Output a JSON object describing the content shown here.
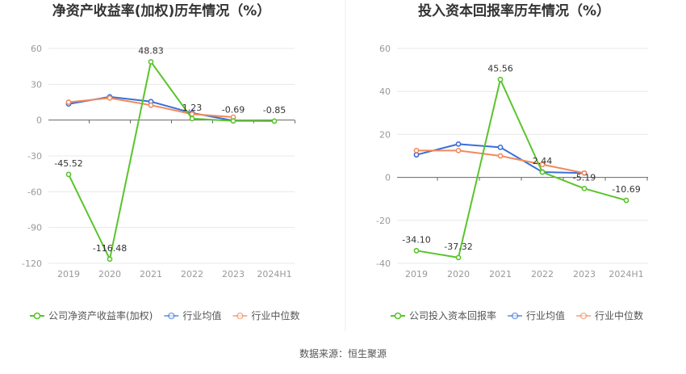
{
  "source_note": "数据来源：恒生聚源",
  "chart_data": [
    {
      "type": "line",
      "title": "净资产收益率(加权)历年情况（%）",
      "categories": [
        "2019",
        "2020",
        "2021",
        "2022",
        "2023",
        "2024H1"
      ],
      "yticks": [
        60,
        30,
        0,
        -30,
        -60,
        -90,
        -120
      ],
      "ylim": [
        -120,
        60
      ],
      "grid": true,
      "legend_position": "bottom-left",
      "series": [
        {
          "name": "公司净资产收益率(加权)",
          "color": "#5ac42b",
          "values": [
            -45.52,
            -116.48,
            48.83,
            1.23,
            -0.69,
            -0.85
          ],
          "labels": [
            "-45.52",
            "-116.48",
            "48.83",
            "1.23",
            "-0.69",
            "-0.85"
          ]
        },
        {
          "name": "行业均值",
          "color": "#3a6fd8",
          "values": [
            13.5,
            19.5,
            15.5,
            6.0,
            -0.5,
            null
          ]
        },
        {
          "name": "行业中位数",
          "color": "#f08a5d",
          "values": [
            15.0,
            18.5,
            12.5,
            5.0,
            2.5,
            null
          ]
        }
      ]
    },
    {
      "type": "line",
      "title": "投入资本回报率历年情况（%）",
      "categories": [
        "2019",
        "2020",
        "2021",
        "2022",
        "2023",
        "2024H1"
      ],
      "yticks": [
        60,
        40,
        20,
        0,
        -20,
        -40
      ],
      "ylim": [
        -40,
        60
      ],
      "grid": true,
      "legend_position": "bottom-left",
      "series": [
        {
          "name": "公司投入资本回报率",
          "color": "#5ac42b",
          "values": [
            -34.1,
            -37.32,
            45.56,
            2.44,
            -5.19,
            -10.69
          ],
          "labels": [
            "-34.10",
            "-37.32",
            "45.56",
            "2.44",
            "-5.19",
            "-10.69"
          ]
        },
        {
          "name": "行业均值",
          "color": "#3a6fd8",
          "values": [
            10.5,
            15.5,
            14.0,
            2.5,
            2.0,
            null
          ]
        },
        {
          "name": "行业中位数",
          "color": "#f08a5d",
          "values": [
            12.5,
            12.5,
            10.0,
            6.0,
            2.0,
            null
          ]
        }
      ]
    }
  ]
}
